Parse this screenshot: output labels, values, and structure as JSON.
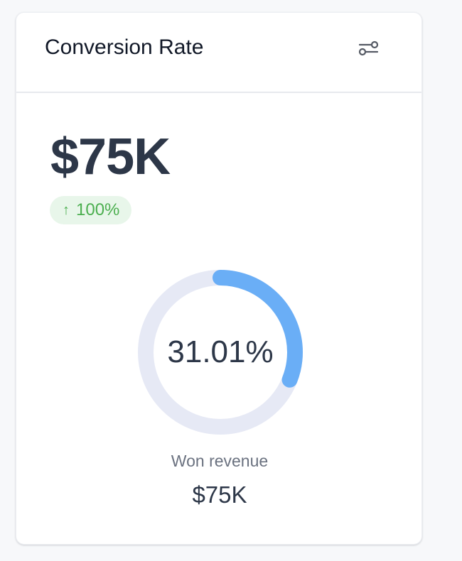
{
  "card": {
    "title": "Conversion Rate",
    "filter_icon": "sliders-icon",
    "main_value": "$75K",
    "change": {
      "arrow": "↑",
      "text": "100%",
      "color": "#4caf50",
      "background": "#e8f6ea"
    },
    "progress": {
      "label": "31.01%",
      "fraction": 0.3101,
      "color": "#6aaef6",
      "track_color": "#e6e9f5"
    },
    "won": {
      "label": "Won revenue",
      "value": "$75K"
    }
  }
}
